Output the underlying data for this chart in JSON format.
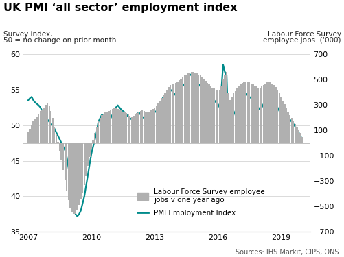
{
  "title": "UK PMI ‘all sector’ employment index",
  "left_label_line1": "Survey index,",
  "left_label_line2": "50 = no change on prior month",
  "right_label_line1": "Labour Force Survey",
  "right_label_line2": "employee jobs  (‘000)",
  "source_text": "Sources: IHS Markit, CIPS, ONS.",
  "ylim_left": [
    35,
    60
  ],
  "ylim_right": [
    -700,
    700
  ],
  "yticks_left": [
    35,
    40,
    45,
    50,
    55,
    60
  ],
  "yticks_right": [
    -700,
    -500,
    -300,
    -100,
    100,
    300,
    500,
    700
  ],
  "xticks": [
    2007,
    2010,
    2013,
    2016,
    2019
  ],
  "pmi_color": "#008B8B",
  "bar_color": "#b0b0b0",
  "background_color": "#ffffff",
  "pmi_dates": [
    2007.0,
    2007.083,
    2007.167,
    2007.25,
    2007.333,
    2007.417,
    2007.5,
    2007.583,
    2007.667,
    2007.75,
    2007.833,
    2007.917,
    2008.0,
    2008.083,
    2008.167,
    2008.25,
    2008.333,
    2008.417,
    2008.5,
    2008.583,
    2008.667,
    2008.75,
    2008.833,
    2008.917,
    2009.0,
    2009.083,
    2009.167,
    2009.25,
    2009.333,
    2009.417,
    2009.5,
    2009.583,
    2009.667,
    2009.75,
    2009.833,
    2009.917,
    2010.0,
    2010.083,
    2010.167,
    2010.25,
    2010.333,
    2010.417,
    2010.5,
    2010.583,
    2010.667,
    2010.75,
    2010.833,
    2010.917,
    2011.0,
    2011.083,
    2011.167,
    2011.25,
    2011.333,
    2011.417,
    2011.5,
    2011.583,
    2011.667,
    2011.75,
    2011.833,
    2011.917,
    2012.0,
    2012.083,
    2012.167,
    2012.25,
    2012.333,
    2012.417,
    2012.5,
    2012.583,
    2012.667,
    2012.75,
    2012.833,
    2012.917,
    2013.0,
    2013.083,
    2013.167,
    2013.25,
    2013.333,
    2013.417,
    2013.5,
    2013.583,
    2013.667,
    2013.75,
    2013.833,
    2013.917,
    2014.0,
    2014.083,
    2014.167,
    2014.25,
    2014.333,
    2014.417,
    2014.5,
    2014.583,
    2014.667,
    2014.75,
    2014.833,
    2014.917,
    2015.0,
    2015.083,
    2015.167,
    2015.25,
    2015.333,
    2015.417,
    2015.5,
    2015.583,
    2015.667,
    2015.75,
    2015.833,
    2015.917,
    2016.0,
    2016.083,
    2016.167,
    2016.25,
    2016.333,
    2016.417,
    2016.5,
    2016.583,
    2016.667,
    2016.75,
    2016.833,
    2016.917,
    2017.0,
    2017.083,
    2017.167,
    2017.25,
    2017.333,
    2017.417,
    2017.5,
    2017.583,
    2017.667,
    2017.75,
    2017.833,
    2017.917,
    2018.0,
    2018.083,
    2018.167,
    2018.25,
    2018.333,
    2018.417,
    2018.5,
    2018.583,
    2018.667,
    2018.75,
    2018.833,
    2018.917,
    2019.0,
    2019.083,
    2019.167,
    2019.25,
    2019.333,
    2019.417,
    2019.5,
    2019.583,
    2019.667,
    2019.75,
    2019.833,
    2019.917,
    2020.0
  ],
  "pmi_values": [
    53.5,
    53.8,
    54.0,
    53.5,
    53.2,
    53.0,
    52.8,
    52.5,
    52.0,
    51.8,
    51.2,
    50.8,
    50.5,
    50.2,
    50.0,
    49.5,
    49.0,
    48.5,
    48.0,
    47.5,
    47.0,
    46.5,
    45.5,
    44.0,
    42.5,
    40.5,
    38.5,
    37.5,
    37.2,
    37.5,
    38.0,
    39.0,
    40.0,
    41.5,
    43.0,
    44.5,
    46.0,
    47.0,
    48.0,
    49.0,
    50.5,
    51.0,
    51.5,
    51.2,
    51.0,
    50.8,
    50.5,
    51.0,
    51.5,
    52.0,
    52.5,
    52.8,
    52.5,
    52.2,
    52.0,
    51.8,
    51.5,
    51.2,
    51.0,
    50.8,
    51.0,
    51.2,
    51.5,
    51.8,
    51.5,
    51.2,
    51.0,
    50.8,
    50.5,
    50.8,
    51.0,
    51.5,
    51.8,
    52.0,
    52.5,
    53.0,
    53.5,
    54.0,
    54.2,
    54.5,
    54.8,
    55.0,
    54.8,
    54.5,
    54.2,
    54.5,
    55.0,
    55.2,
    55.5,
    55.8,
    56.0,
    56.5,
    57.0,
    57.2,
    57.0,
    56.5,
    56.0,
    55.8,
    55.5,
    55.2,
    55.0,
    54.8,
    54.5,
    54.2,
    54.0,
    53.8,
    53.5,
    53.2,
    53.0,
    52.5,
    55.0,
    58.5,
    57.5,
    57.0,
    49.5,
    49.0,
    50.5,
    51.5,
    52.0,
    52.5,
    53.0,
    53.5,
    54.0,
    54.2,
    54.5,
    54.2,
    54.0,
    53.8,
    53.5,
    53.0,
    52.8,
    52.5,
    52.2,
    52.5,
    53.0,
    54.0,
    54.5,
    54.8,
    54.5,
    54.0,
    53.5,
    53.0,
    52.5,
    52.0,
    51.5,
    51.2,
    51.0,
    50.8,
    50.5,
    50.8,
    50.5,
    50.2,
    49.8,
    49.5,
    49.0,
    48.5,
    48.0
  ],
  "lfs_values": [
    90,
    110,
    140,
    170,
    190,
    210,
    230,
    250,
    260,
    280,
    300,
    310,
    290,
    250,
    200,
    130,
    70,
    10,
    -60,
    -130,
    -210,
    -290,
    -380,
    -450,
    -510,
    -540,
    -560,
    -560,
    -530,
    -490,
    -440,
    -390,
    -330,
    -260,
    -180,
    -110,
    -50,
    20,
    80,
    130,
    170,
    200,
    220,
    230,
    240,
    240,
    250,
    260,
    270,
    280,
    275,
    270,
    265,
    255,
    245,
    240,
    235,
    225,
    215,
    210,
    215,
    225,
    235,
    245,
    250,
    255,
    250,
    245,
    240,
    248,
    258,
    268,
    280,
    295,
    310,
    330,
    355,
    380,
    400,
    420,
    440,
    455,
    465,
    470,
    475,
    485,
    495,
    508,
    520,
    530,
    540,
    548,
    555,
    560,
    558,
    553,
    548,
    540,
    530,
    518,
    505,
    490,
    475,
    460,
    448,
    438,
    428,
    420,
    412,
    420,
    450,
    500,
    540,
    560,
    390,
    340,
    360,
    390,
    410,
    430,
    448,
    462,
    474,
    480,
    485,
    482,
    478,
    470,
    460,
    452,
    445,
    438,
    432,
    445,
    458,
    470,
    478,
    483,
    478,
    468,
    455,
    440,
    420,
    395,
    365,
    335,
    305,
    275,
    248,
    222,
    198,
    175,
    152,
    130,
    105,
    78,
    48
  ]
}
